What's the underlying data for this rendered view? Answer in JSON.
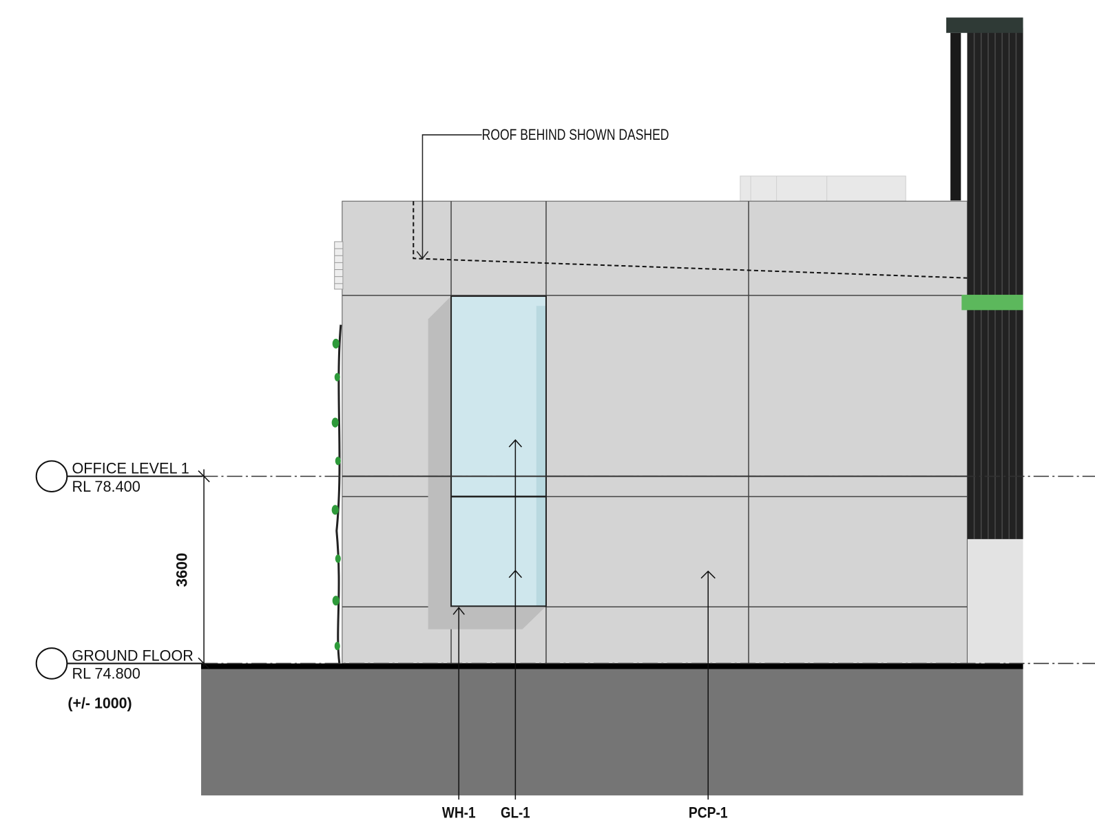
{
  "annotations": {
    "roof_note": "ROOF BEHIND SHOWN DASHED",
    "dimension": "3600",
    "tolerance": "(+/- 1000)"
  },
  "levels": [
    {
      "name": "OFFICE LEVEL 1",
      "rl": "RL 78.400"
    },
    {
      "name": "GROUND FLOOR",
      "rl": "RL 74.800"
    }
  ],
  "tags": [
    "WH-1",
    "GL-1",
    "PCP-1"
  ]
}
